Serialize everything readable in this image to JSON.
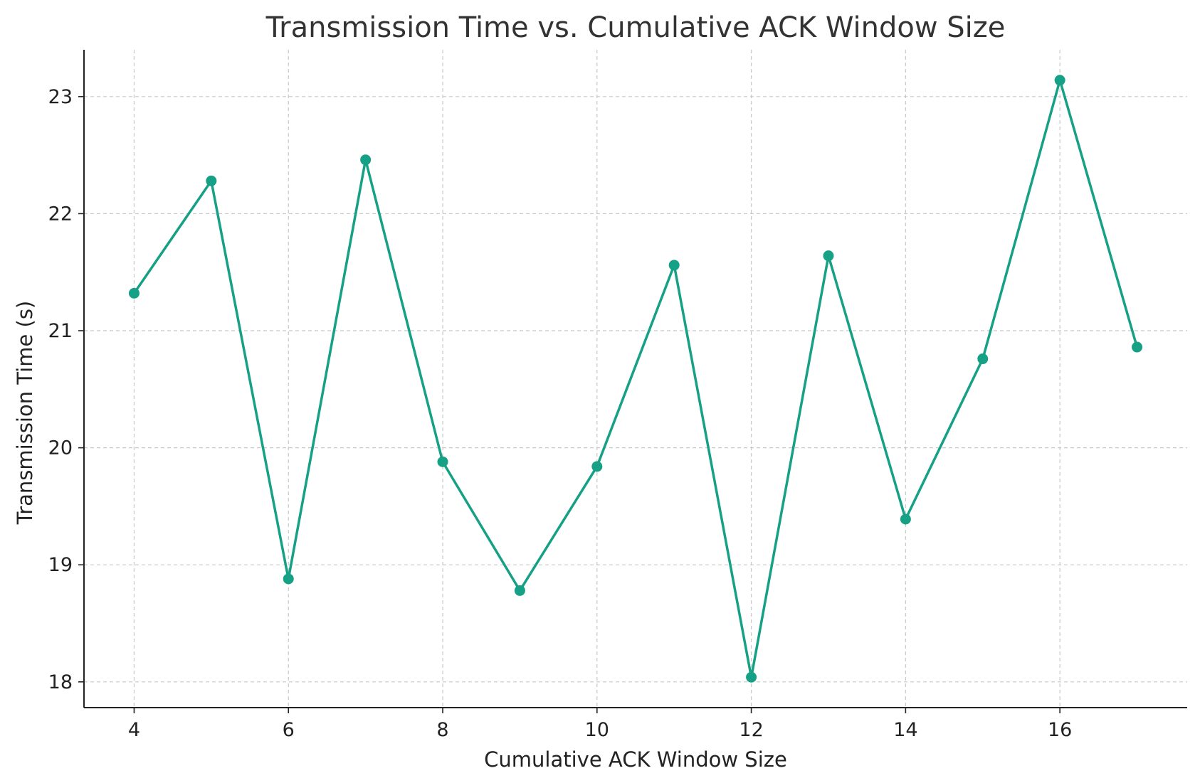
{
  "chart_data": {
    "type": "line",
    "title": "Transmission Time vs. Cumulative ACK Window Size",
    "xlabel": "Cumulative ACK Window Size",
    "ylabel": "Transmission Time (s)",
    "x": [
      4,
      5,
      6,
      7,
      8,
      9,
      10,
      11,
      12,
      13,
      14,
      15,
      16,
      17
    ],
    "series": [
      {
        "values": [
          21.32,
          22.28,
          18.88,
          22.46,
          19.88,
          18.78,
          19.84,
          21.56,
          18.04,
          21.64,
          19.39,
          20.76,
          23.14,
          20.86
        ],
        "color": "#16a085",
        "marker": "circle"
      }
    ],
    "xlim": [
      3.35,
      17.65
    ],
    "ylim": [
      17.78,
      23.4
    ],
    "xticks": [
      4,
      6,
      8,
      10,
      12,
      14,
      16
    ],
    "yticks": [
      18,
      19,
      20,
      21,
      22,
      23
    ],
    "grid": true,
    "axes_color": "#222222"
  }
}
